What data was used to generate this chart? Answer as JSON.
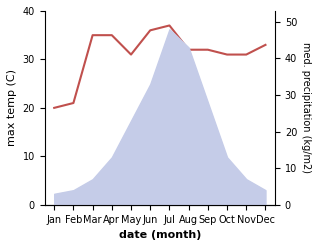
{
  "months": [
    "Jan",
    "Feb",
    "Mar",
    "Apr",
    "May",
    "Jun",
    "Jul",
    "Aug",
    "Sep",
    "Oct",
    "Nov",
    "Dec"
  ],
  "temperature": [
    20,
    21,
    35,
    35,
    31,
    36,
    37,
    32,
    32,
    31,
    31,
    33
  ],
  "precipitation": [
    3,
    4,
    7,
    13,
    23,
    33,
    48,
    43,
    28,
    13,
    7,
    4
  ],
  "temp_color": "#c0504d",
  "precip_fill_color": "#c5cce8",
  "xlabel": "date (month)",
  "ylabel_left": "max temp (C)",
  "ylabel_right": "med. precipitation (kg/m2)",
  "ylim_left": [
    0,
    40
  ],
  "ylim_right": [
    0,
    53
  ],
  "yticks_left": [
    0,
    10,
    20,
    30,
    40
  ],
  "yticks_right": [
    0,
    10,
    20,
    30,
    40,
    50
  ],
  "background_color": "#ffffff"
}
